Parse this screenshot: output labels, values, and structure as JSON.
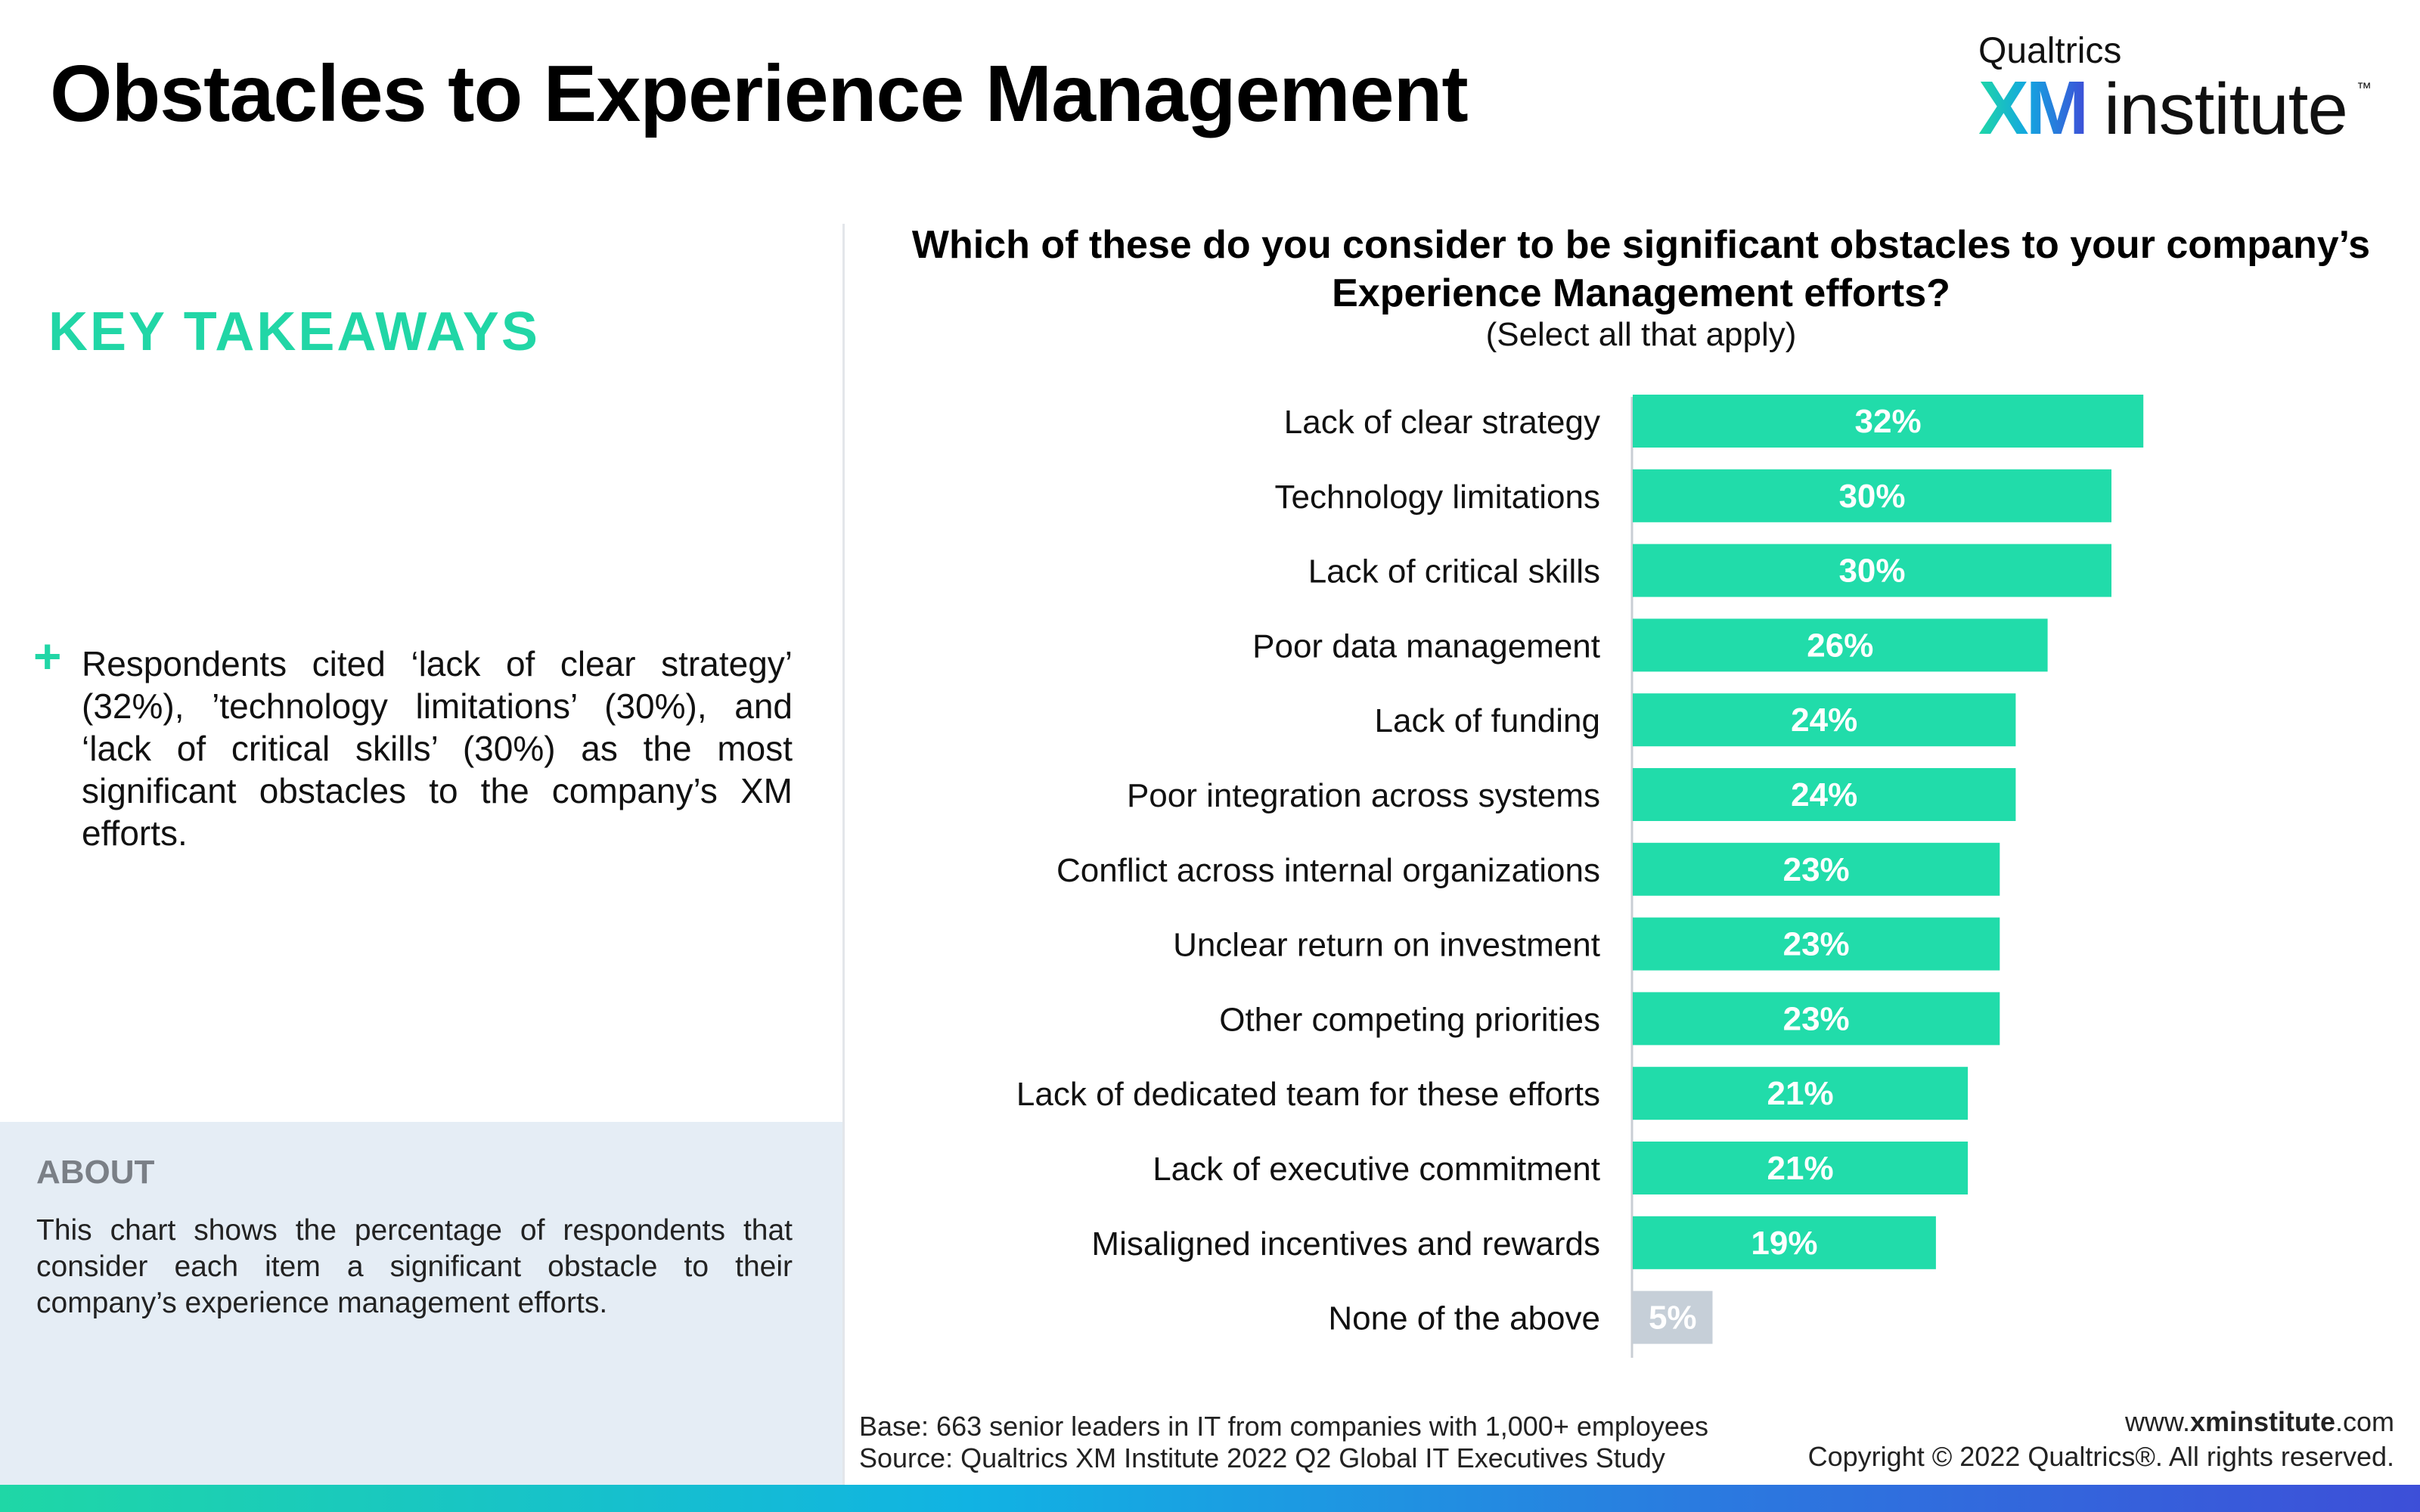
{
  "page": {
    "title": "Obstacles to Experience Management"
  },
  "logo": {
    "top": "Qualtrics",
    "xm": "XM",
    "institute": "institute",
    "tm": "™"
  },
  "takeaways": {
    "heading": "KEY TAKEAWAYS",
    "bullet_marker": "+",
    "bullet": "Respondents cited ‘lack of clear strategy’ (32%), ’technology limitations’ (30%), and ‘lack of critical skills’ (30%) as the most significant obstacles to the company’s XM efforts."
  },
  "about": {
    "heading": "ABOUT",
    "text": "This chart shows the percentage of respondents that consider each item a significant obstacle to their company’s experience management efforts."
  },
  "chart_data": {
    "type": "bar",
    "orientation": "horizontal",
    "title": "Which of these do you consider to be significant obstacles to your company’s Experience Management efforts?",
    "subtitle": "(Select all that apply)",
    "categories": [
      "Lack of clear strategy",
      "Technology limitations",
      "Lack of critical skills",
      "Poor data management",
      "Lack of funding",
      "Poor integration across systems",
      "Conflict across internal organizations",
      "Unclear return on investment",
      "Other competing priorities",
      "Lack of dedicated team for these efforts",
      "Lack of executive commitment",
      "Misaligned incentives and rewards",
      "None of the above"
    ],
    "values": [
      32,
      30,
      30,
      26,
      24,
      24,
      23,
      23,
      23,
      21,
      21,
      19,
      5
    ],
    "value_labels": [
      "32%",
      "30%",
      "30%",
      "26%",
      "24%",
      "24%",
      "23%",
      "23%",
      "23%",
      "21%",
      "21%",
      "19%",
      "5%"
    ],
    "xlim": [
      0,
      50
    ],
    "grid": false,
    "colors": {
      "bar": "#21dcaa",
      "none_bar": "#c6cfd8",
      "label_text": "#ffffff"
    }
  },
  "footer": {
    "base": "Base: 663 senior leaders in IT from companies with 1,000+ employees",
    "source": "Source: Qualtrics XM Institute 2022 Q2 Global IT Executives Study",
    "site_prefix": "www.",
    "site_bold": "xminstitute",
    "site_suffix": ".com",
    "copyright": "Copyright © 2022 Qualtrics®. All rights reserved."
  }
}
